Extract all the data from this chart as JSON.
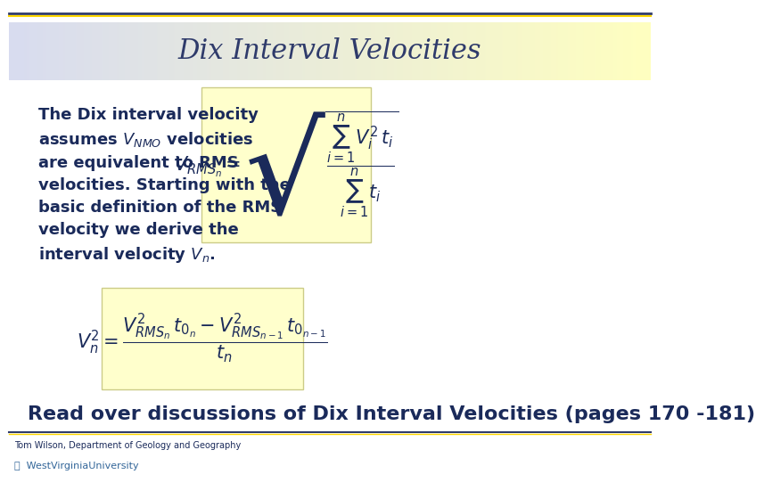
{
  "title": "Dix Interval Velocities",
  "title_fontsize": 22,
  "title_color": "#2F3B6B",
  "bg_color": "#FFFFFF",
  "header_bg_left": "#D8DCF0",
  "header_bg_right": "#FFFFC0",
  "formula_bg": "#FFFFCC",
  "body_text_color": "#1A2A5A",
  "body_text": "The Dix interval velocity\nassumes V",
  "body_text2": " velocities\nare equivalent to RMS\nvelocities. Starting with the\nbasic definition of the RMS\nvelocity we derive the\ninterval velocity V",
  "sub_NMO": "NMO",
  "sub_n": "n",
  "read_text": "Read over discussions of Dix Interval Velocities (pages 170 -181)",
  "read_fontsize": 16,
  "read_color": "#1A2A5A",
  "footer_text": "Tom Wilson, Department of Geology and Geography",
  "footer_fontsize": 7,
  "footer_color": "#1A2A5A",
  "top_line_color1": "#2F3B6B",
  "top_line_color2": "#FFD700",
  "bottom_line_color1": "#2F3B6B",
  "bottom_line_color2": "#FFD700",
  "eq1": "V_{RMS_n} = \\sqrt{\\dfrac{\\sum_{i=1}^{n} V_i^2 t_i}{\\sum_{i=1}^{n} t_i}}",
  "eq2": "V_n^2 = \\dfrac{V_{RMS_n}^2 t_{0_n} - V_{RMS_{n-1}}^2 t_{0_{n-1}}}{t_n}"
}
